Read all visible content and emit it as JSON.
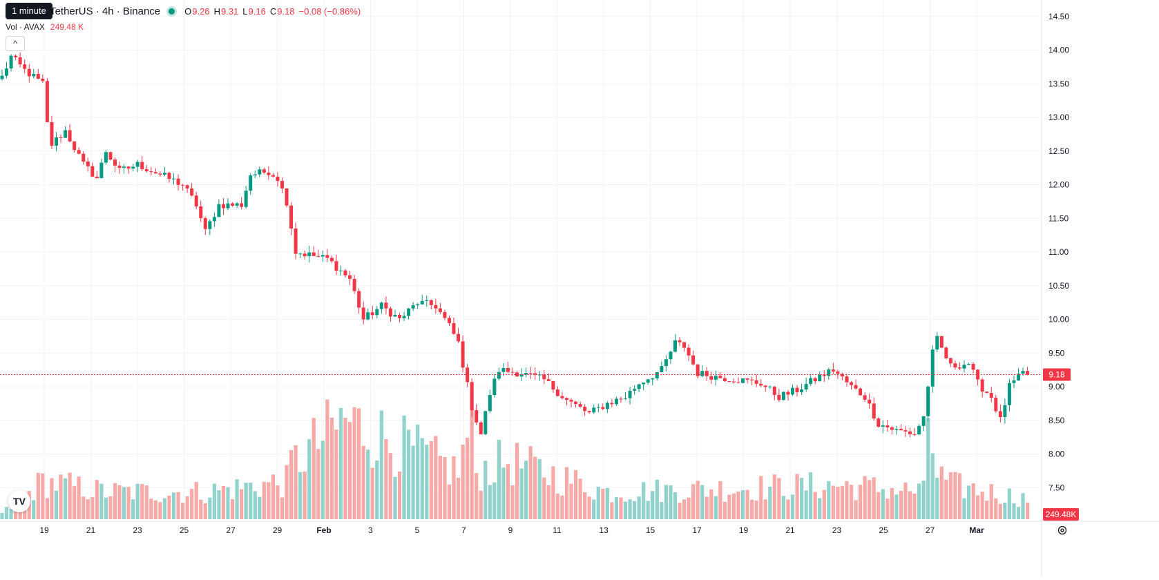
{
  "tooltip": "1 minute",
  "header": {
    "symbol_text": "/ TetherUS · 4h · Binance",
    "o_label": "O",
    "o_value": "9.26",
    "h_label": "H",
    "h_value": "9.31",
    "l_label": "L",
    "l_value": "9.16",
    "c_label": "C",
    "c_value": "9.18",
    "change": "−0.08 (−0.86%)"
  },
  "volume_legend": {
    "label": "Vol · AVAX",
    "value": "249.48 K"
  },
  "collapse_glyph": "^",
  "logo_text": "TV",
  "settings_icon": "gear-icon",
  "colors": {
    "up": "#089981",
    "down": "#f23645",
    "vol_up": "#92d2cc",
    "vol_down": "#f7a9a7",
    "grid": "#f0f3fa"
  },
  "chart_data": {
    "type": "candlestick",
    "symbol": "AVAX/USDT",
    "interval": "4h",
    "exchange": "Binance",
    "last_price": 9.18,
    "last_price_label": "9.18",
    "last_volume_label": "249.48K",
    "y_axis": {
      "min": 7.0,
      "max": 14.6,
      "ticks": [
        "14.50",
        "14.00",
        "13.50",
        "13.00",
        "12.50",
        "12.00",
        "11.50",
        "11.00",
        "10.50",
        "10.00",
        "9.50",
        "9.00",
        "8.50",
        "8.00",
        "7.50"
      ]
    },
    "x_axis_labels": [
      "19",
      "21",
      "23",
      "25",
      "27",
      "29",
      "Feb",
      "3",
      "5",
      "7",
      "9",
      "11",
      "13",
      "15",
      "17",
      "19",
      "21",
      "23",
      "25",
      "27",
      "Mar"
    ],
    "ohlc_keypoints": [
      [
        0,
        13.6
      ],
      [
        2,
        13.9
      ],
      [
        5,
        13.7
      ],
      [
        9,
        13.5
      ],
      [
        10,
        12.9
      ],
      [
        11,
        12.6
      ],
      [
        14,
        12.8
      ],
      [
        18,
        12.3
      ],
      [
        21,
        12.1
      ],
      [
        23,
        12.5
      ],
      [
        26,
        12.2
      ],
      [
        30,
        12.3
      ],
      [
        35,
        12.15
      ],
      [
        40,
        12.0
      ],
      [
        43,
        11.7
      ],
      [
        45,
        11.3
      ],
      [
        48,
        11.7
      ],
      [
        53,
        11.7
      ],
      [
        55,
        12.15
      ],
      [
        59,
        12.2
      ],
      [
        61,
        12.1
      ],
      [
        63,
        11.75
      ],
      [
        65,
        11.0
      ],
      [
        72,
        10.9
      ],
      [
        77,
        10.6
      ],
      [
        80,
        10.0
      ],
      [
        84,
        10.2
      ],
      [
        88,
        10.0
      ],
      [
        92,
        10.25
      ],
      [
        96,
        10.2
      ],
      [
        99,
        9.9
      ],
      [
        101,
        9.65
      ],
      [
        104,
        8.7
      ],
      [
        106,
        8.3
      ],
      [
        108,
        8.9
      ],
      [
        110,
        9.25
      ],
      [
        115,
        9.2
      ],
      [
        120,
        9.1
      ],
      [
        125,
        8.8
      ],
      [
        130,
        8.6
      ],
      [
        134,
        8.75
      ],
      [
        138,
        8.85
      ],
      [
        141,
        9.05
      ],
      [
        146,
        9.25
      ],
      [
        149,
        9.65
      ],
      [
        151,
        9.6
      ],
      [
        154,
        9.2
      ],
      [
        158,
        9.15
      ],
      [
        163,
        9.1
      ],
      [
        168,
        9.05
      ],
      [
        172,
        8.85
      ],
      [
        176,
        8.95
      ],
      [
        181,
        9.15
      ],
      [
        184,
        9.25
      ],
      [
        188,
        9.0
      ],
      [
        191,
        8.85
      ],
      [
        194,
        8.45
      ],
      [
        198,
        8.35
      ],
      [
        202,
        8.3
      ],
      [
        204,
        8.55
      ],
      [
        206,
        9.5
      ],
      [
        207,
        9.7
      ],
      [
        210,
        9.3
      ],
      [
        214,
        9.35
      ],
      [
        216,
        9.05
      ],
      [
        219,
        8.85
      ],
      [
        221,
        8.5
      ],
      [
        223,
        9.0
      ],
      [
        226,
        9.2
      ],
      [
        227,
        9.18
      ]
    ],
    "volume_keypoints": [
      [
        0,
        8
      ],
      [
        9,
        55
      ],
      [
        23,
        40
      ],
      [
        45,
        40
      ],
      [
        63,
        55
      ],
      [
        64,
        80
      ],
      [
        76,
        145
      ],
      [
        101,
        70
      ],
      [
        103,
        120
      ],
      [
        104,
        120
      ],
      [
        105,
        70
      ],
      [
        112,
        85
      ],
      [
        134,
        40
      ],
      [
        186,
        50
      ],
      [
        204,
        40
      ],
      [
        205,
        150
      ],
      [
        207,
        65
      ],
      [
        210,
        50
      ],
      [
        227,
        30
      ]
    ],
    "grid": true
  }
}
